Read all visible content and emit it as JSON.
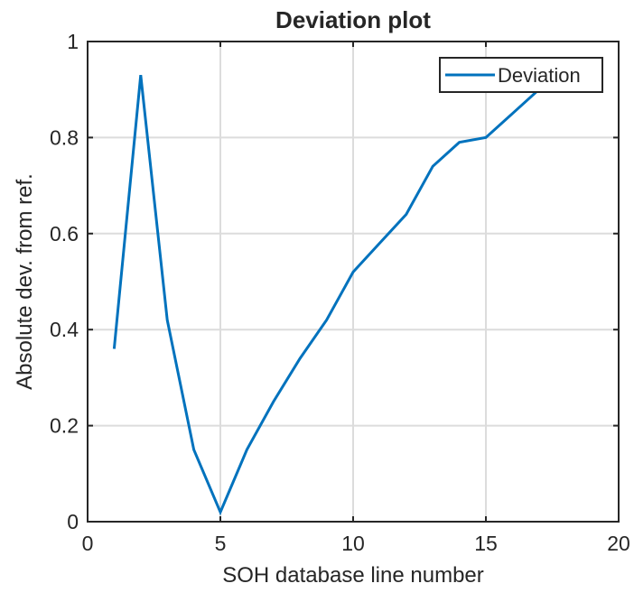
{
  "chart_data": {
    "type": "line",
    "title": "Deviation plot",
    "xlabel": "SOH database line number",
    "ylabel": "Absolute dev. from ref.",
    "xlim": [
      0,
      20
    ],
    "ylim": [
      0,
      1
    ],
    "xticks": [
      0,
      5,
      10,
      15,
      20
    ],
    "yticks": [
      0,
      0.2,
      0.4,
      0.6,
      0.8,
      1
    ],
    "xtick_labels": [
      "0",
      "5",
      "10",
      "15",
      "20"
    ],
    "ytick_labels": [
      "0",
      "0.2",
      "0.4",
      "0.6",
      "0.8",
      "1"
    ],
    "grid": true,
    "legend_position": "top-right",
    "series": [
      {
        "name": "Deviation",
        "color": "#0072BD",
        "x": [
          1,
          2,
          3,
          4,
          5,
          6,
          7,
          8,
          9,
          10,
          11,
          12,
          13,
          14,
          15,
          16,
          17,
          18
        ],
        "y": [
          0.36,
          0.93,
          0.42,
          0.15,
          0.02,
          0.15,
          0.25,
          0.34,
          0.42,
          0.52,
          0.58,
          0.64,
          0.74,
          0.79,
          0.8,
          0.85,
          0.9,
          0.94
        ]
      }
    ]
  }
}
